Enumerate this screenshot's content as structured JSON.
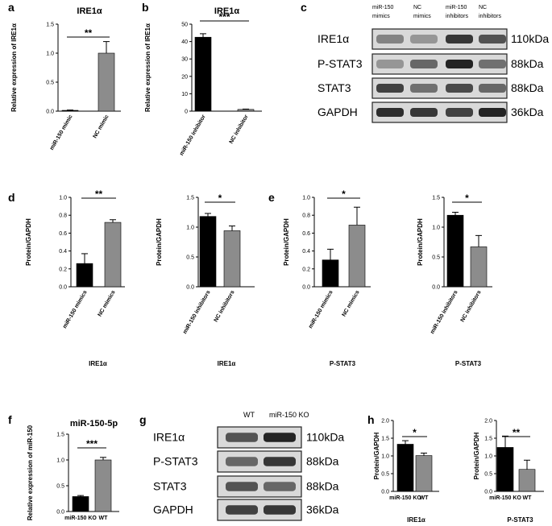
{
  "panels": {
    "a": "a",
    "b": "b",
    "c": "c",
    "d": "d",
    "e": "e",
    "f": "f",
    "g": "g",
    "h": "h"
  },
  "blot_c": {
    "lanes": [
      [
        "miR-150",
        "mimics"
      ],
      [
        "NC",
        "mimics"
      ],
      [
        "miR-150",
        "inhibitors"
      ],
      [
        "NC",
        "inhibitors"
      ]
    ],
    "rows": [
      {
        "protein": "IRE1α",
        "kda": "110kDa"
      },
      {
        "protein": "P-STAT3",
        "kda": "88kDa"
      },
      {
        "protein": "STAT3",
        "kda": "88kDa"
      },
      {
        "protein": "GAPDH",
        "kda": "36kDa"
      }
    ]
  },
  "blot_g": {
    "lanes": [
      "WT",
      "miR-150 KO"
    ],
    "rows": [
      {
        "protein": "IRE1α",
        "kda": "110kDa"
      },
      {
        "protein": "P-STAT3",
        "kda": "88kDa"
      },
      {
        "protein": "STAT3",
        "kda": "88kDa"
      },
      {
        "protein": "GAPDH",
        "kda": "36kDa"
      }
    ]
  },
  "colors": {
    "bar_dark": "#000000",
    "bar_gray": "#8c8c8c",
    "axis": "#000000"
  },
  "chart_data": [
    {
      "id": "a",
      "type": "bar",
      "title": "IRE1α",
      "ylabel": "Relative expression of IRE1α",
      "xlabel": "",
      "categories": [
        "miR-150 mimic",
        "NC mimic"
      ],
      "values": [
        0.01,
        1.0
      ],
      "errors": [
        0.01,
        0.2
      ],
      "colors": [
        "#000000",
        "#8c8c8c"
      ],
      "ylim": [
        0,
        1.5
      ],
      "yticks": [
        "0.0",
        "0.5",
        "1.0",
        "1.5"
      ],
      "significance": "**"
    },
    {
      "id": "b",
      "type": "bar",
      "title": "IRE1α",
      "ylabel": "Relative expression of IRE1α",
      "xlabel": "",
      "categories": [
        "miR-150 inhibitor",
        "NC inhibitor"
      ],
      "values": [
        42.5,
        1.0
      ],
      "errors": [
        2.0,
        0.2
      ],
      "colors": [
        "#000000",
        "#8c8c8c"
      ],
      "ylim": [
        0,
        50
      ],
      "yticks": [
        "0",
        "10",
        "20",
        "30",
        "40",
        "50"
      ],
      "significance": "***"
    },
    {
      "id": "d1",
      "type": "bar",
      "title": "",
      "ylabel": "Protein/GAPDH",
      "xlabel": "IRE1α",
      "categories": [
        "miR-150 mimics",
        "NC mimics"
      ],
      "values": [
        0.26,
        0.72
      ],
      "errors": [
        0.11,
        0.03
      ],
      "colors": [
        "#000000",
        "#8c8c8c"
      ],
      "ylim": [
        0,
        1.0
      ],
      "yticks": [
        "0.0",
        "0.2",
        "0.4",
        "0.6",
        "0.8",
        "1.0"
      ],
      "significance": "**"
    },
    {
      "id": "d2",
      "type": "bar",
      "title": "",
      "ylabel": "Protein/GAPDH",
      "xlabel": "IRE1α",
      "categories": [
        "miR-150 inhibitors",
        "NC inhibitors"
      ],
      "values": [
        1.18,
        0.94
      ],
      "errors": [
        0.05,
        0.08
      ],
      "colors": [
        "#000000",
        "#8c8c8c"
      ],
      "ylim": [
        0,
        1.5
      ],
      "yticks": [
        "0.0",
        "0.5",
        "1.0",
        "1.5"
      ],
      "significance": "*"
    },
    {
      "id": "e1",
      "type": "bar",
      "title": "",
      "ylabel": "Protein/GAPDH",
      "xlabel": "P-STAT3",
      "categories": [
        "miR-150 mimics",
        "NC mimics"
      ],
      "values": [
        0.3,
        0.69
      ],
      "errors": [
        0.12,
        0.2
      ],
      "colors": [
        "#000000",
        "#8c8c8c"
      ],
      "ylim": [
        0,
        1.0
      ],
      "yticks": [
        "0.0",
        "0.2",
        "0.4",
        "0.6",
        "0.8",
        "1.0"
      ],
      "significance": "*"
    },
    {
      "id": "e2",
      "type": "bar",
      "title": "",
      "ylabel": "Protein/GAPDH",
      "xlabel": "P-STAT3",
      "categories": [
        "miR-150 inhibitors",
        "NC inhibitors"
      ],
      "values": [
        1.2,
        0.67
      ],
      "errors": [
        0.05,
        0.19
      ],
      "colors": [
        "#000000",
        "#8c8c8c"
      ],
      "ylim": [
        0,
        1.5
      ],
      "yticks": [
        "0.0",
        "0.5",
        "1.0",
        "1.5"
      ],
      "significance": "*"
    },
    {
      "id": "f",
      "type": "bar",
      "title": "miR-150-5p",
      "ylabel": "Relative expression of miR-150",
      "xlabel": "",
      "categories": [
        "miR-150 KO",
        "WT"
      ],
      "values": [
        0.29,
        1.0
      ],
      "errors": [
        0.02,
        0.05
      ],
      "colors": [
        "#000000",
        "#8c8c8c"
      ],
      "ylim": [
        0,
        1.5
      ],
      "yticks": [
        "0.0",
        "0.5",
        "1.0",
        "1.5"
      ],
      "significance": "***"
    },
    {
      "id": "h1",
      "type": "bar",
      "title": "",
      "ylabel": "Protein/GAPDH",
      "xlabel": "IRE1α",
      "categories": [
        "miR-150 KO",
        "WT"
      ],
      "values": [
        1.33,
        1.01
      ],
      "errors": [
        0.1,
        0.07
      ],
      "colors": [
        "#000000",
        "#8c8c8c"
      ],
      "ylim": [
        0,
        2.0
      ],
      "yticks": [
        "0.0",
        "0.5",
        "1.0",
        "1.5",
        "2.0"
      ],
      "significance": "*"
    },
    {
      "id": "h2",
      "type": "bar",
      "title": "",
      "ylabel": "Protein/GAPDH",
      "xlabel": "P-STAT3",
      "categories": [
        "miR-150 KO",
        "WT"
      ],
      "values": [
        1.24,
        0.62
      ],
      "errors": [
        0.32,
        0.26
      ],
      "colors": [
        "#000000",
        "#8c8c8c"
      ],
      "ylim": [
        0,
        2.0
      ],
      "yticks": [
        "0.0",
        "0.5",
        "1.0",
        "1.5",
        "2.0"
      ],
      "significance": "**"
    }
  ]
}
